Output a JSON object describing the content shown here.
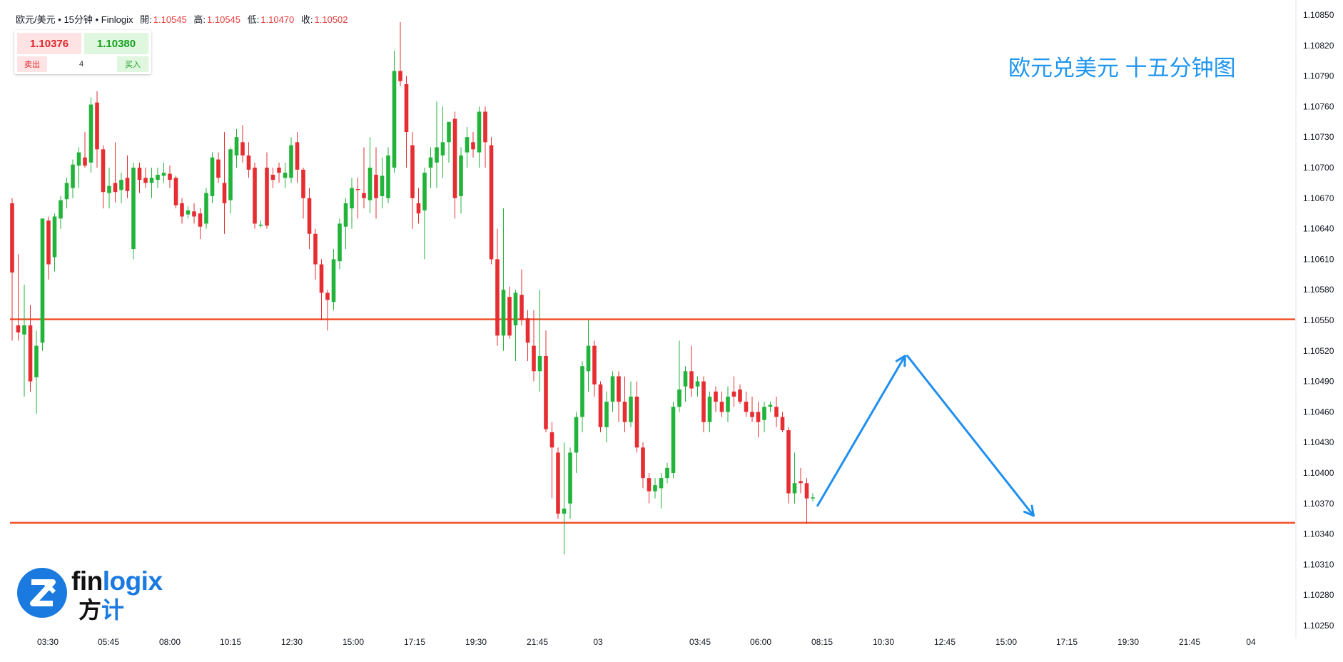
{
  "header": {
    "symbol": "欧元/美元",
    "sep1": "•",
    "interval": "15分钟",
    "sep2": "•",
    "source": "Finlogix",
    "open_label": "開:",
    "open": "1.10545",
    "high_label": "高:",
    "high": "1.10545",
    "low_label": "低:",
    "low": "1.10470",
    "close_label": "收:",
    "close": "1.10502"
  },
  "trade_panel": {
    "sell_price": "1.10376",
    "buy_price": "1.10380",
    "sell_label": "卖出",
    "buy_label": "买入",
    "quantity": "4"
  },
  "annotation": "欧元兑美元 十五分钟图",
  "logo": {
    "en_dark": "fin",
    "en_blue": "logix",
    "cn_dark": "方",
    "cn_blue": "计"
  },
  "colors": {
    "up": "#22b33a",
    "down": "#e62e32",
    "level": "#f0502a",
    "arrow": "#1f8ff0",
    "grid": "#e9ecf0"
  },
  "chart_data": {
    "type": "candlestick",
    "title": "欧元兑美元 十五分钟图",
    "y_ticks": [
      "1.10850",
      "1.10820",
      "1.10790",
      "1.10760",
      "1.10730",
      "1.10700",
      "1.10670",
      "1.10640",
      "1.10610",
      "1.10580",
      "1.10550",
      "1.10520",
      "1.10490",
      "1.10460",
      "1.10430",
      "1.10400",
      "1.10370",
      "1.10340",
      "1.10310",
      "1.10280",
      "1.10250"
    ],
    "x_ticks": [
      "03:30",
      "05:45",
      "08:00",
      "10:15",
      "12:30",
      "15:00",
      "17:15",
      "19:30",
      "21:45",
      "03",
      "03:45",
      "06:00",
      "08:15",
      "10:30",
      "12:45",
      "15:00",
      "17:15",
      "19:30",
      "21:45",
      "04"
    ],
    "ylim": [
      1.10242,
      1.10866
    ],
    "levels": [
      1.10551,
      1.10351
    ],
    "candles": [
      {
        "t": 0,
        "o": 1.10665,
        "h": 1.1067,
        "l": 1.1053,
        "c": 1.10597
      },
      {
        "t": 1,
        "o": 1.10545,
        "h": 1.10615,
        "l": 1.1053,
        "c": 1.10538
      },
      {
        "t": 2,
        "o": 1.10536,
        "h": 1.10585,
        "l": 1.10475,
        "c": 1.10545
      },
      {
        "t": 3,
        "o": 1.10545,
        "h": 1.10565,
        "l": 1.1048,
        "c": 1.1049
      },
      {
        "t": 4,
        "o": 1.10494,
        "h": 1.1054,
        "l": 1.10458,
        "c": 1.10525
      },
      {
        "t": 5,
        "o": 1.10528,
        "h": 1.1065,
        "l": 1.1052,
        "c": 1.1065
      },
      {
        "t": 6,
        "o": 1.10648,
        "h": 1.10652,
        "l": 1.1059,
        "c": 1.10605
      },
      {
        "t": 7,
        "o": 1.10612,
        "h": 1.10655,
        "l": 1.10598,
        "c": 1.10652
      },
      {
        "t": 8,
        "o": 1.1065,
        "h": 1.10672,
        "l": 1.1064,
        "c": 1.10668
      },
      {
        "t": 9,
        "o": 1.10669,
        "h": 1.1069,
        "l": 1.1066,
        "c": 1.10685
      },
      {
        "t": 10,
        "o": 1.1068,
        "h": 1.10708,
        "l": 1.1067,
        "c": 1.10703
      },
      {
        "t": 11,
        "o": 1.10702,
        "h": 1.1072,
        "l": 1.1068,
        "c": 1.10715
      },
      {
        "t": 12,
        "o": 1.1071,
        "h": 1.10735,
        "l": 1.107,
        "c": 1.10702
      },
      {
        "t": 13,
        "o": 1.10705,
        "h": 1.10769,
        "l": 1.10695,
        "c": 1.10762
      },
      {
        "t": 14,
        "o": 1.10764,
        "h": 1.10775,
        "l": 1.107,
        "c": 1.10718
      },
      {
        "t": 15,
        "o": 1.10718,
        "h": 1.10722,
        "l": 1.1066,
        "c": 1.10676
      },
      {
        "t": 16,
        "o": 1.10675,
        "h": 1.107,
        "l": 1.1066,
        "c": 1.10682
      },
      {
        "t": 17,
        "o": 1.10685,
        "h": 1.10725,
        "l": 1.10666,
        "c": 1.10676
      },
      {
        "t": 18,
        "o": 1.10678,
        "h": 1.10695,
        "l": 1.10665,
        "c": 1.10688
      },
      {
        "t": 19,
        "o": 1.1069,
        "h": 1.10712,
        "l": 1.1067,
        "c": 1.10677
      },
      {
        "t": 20,
        "o": 1.1062,
        "h": 1.10705,
        "l": 1.1061,
        "c": 1.107
      },
      {
        "t": 21,
        "o": 1.107,
        "h": 1.10705,
        "l": 1.10675,
        "c": 1.10688
      },
      {
        "t": 22,
        "o": 1.1069,
        "h": 1.107,
        "l": 1.1068,
        "c": 1.10685
      },
      {
        "t": 23,
        "o": 1.10685,
        "h": 1.107,
        "l": 1.1067,
        "c": 1.1069
      },
      {
        "t": 24,
        "o": 1.10688,
        "h": 1.107,
        "l": 1.1068,
        "c": 1.10693
      },
      {
        "t": 25,
        "o": 1.10692,
        "h": 1.10705,
        "l": 1.10685,
        "c": 1.10695
      },
      {
        "t": 26,
        "o": 1.10694,
        "h": 1.10702,
        "l": 1.1068,
        "c": 1.10688
      },
      {
        "t": 27,
        "o": 1.1069,
        "h": 1.10692,
        "l": 1.1066,
        "c": 1.10663
      },
      {
        "t": 28,
        "o": 1.10665,
        "h": 1.1067,
        "l": 1.10645,
        "c": 1.10652
      },
      {
        "t": 29,
        "o": 1.10654,
        "h": 1.10662,
        "l": 1.1065,
        "c": 1.10658
      },
      {
        "t": 30,
        "o": 1.10657,
        "h": 1.10665,
        "l": 1.10645,
        "c": 1.10652
      },
      {
        "t": 31,
        "o": 1.10655,
        "h": 1.1066,
        "l": 1.1063,
        "c": 1.10642
      },
      {
        "t": 32,
        "o": 1.10645,
        "h": 1.1068,
        "l": 1.1064,
        "c": 1.10675
      },
      {
        "t": 33,
        "o": 1.10672,
        "h": 1.10715,
        "l": 1.10665,
        "c": 1.1071
      },
      {
        "t": 34,
        "o": 1.10708,
        "h": 1.10715,
        "l": 1.10685,
        "c": 1.1069
      },
      {
        "t": 35,
        "o": 1.10685,
        "h": 1.10735,
        "l": 1.10635,
        "c": 1.10665
      },
      {
        "t": 36,
        "o": 1.10668,
        "h": 1.1072,
        "l": 1.10655,
        "c": 1.10718
      },
      {
        "t": 37,
        "o": 1.10712,
        "h": 1.10738,
        "l": 1.107,
        "c": 1.1073
      },
      {
        "t": 38,
        "o": 1.10725,
        "h": 1.10742,
        "l": 1.10705,
        "c": 1.10712
      },
      {
        "t": 39,
        "o": 1.10712,
        "h": 1.10725,
        "l": 1.1069,
        "c": 1.10698
      },
      {
        "t": 40,
        "o": 1.107,
        "h": 1.10705,
        "l": 1.1064,
        "c": 1.10645
      },
      {
        "t": 41,
        "o": 1.10643,
        "h": 1.10648,
        "l": 1.10641,
        "c": 1.10644
      },
      {
        "t": 42,
        "o": 1.107,
        "h": 1.10715,
        "l": 1.1064,
        "c": 1.10643
      },
      {
        "t": 43,
        "o": 1.10693,
        "h": 1.107,
        "l": 1.1068,
        "c": 1.10688
      },
      {
        "t": 44,
        "o": 1.107,
        "h": 1.10705,
        "l": 1.10685,
        "c": 1.10695
      },
      {
        "t": 45,
        "o": 1.1069,
        "h": 1.10705,
        "l": 1.1068,
        "c": 1.10695
      },
      {
        "t": 46,
        "o": 1.1069,
        "h": 1.1073,
        "l": 1.10685,
        "c": 1.10722
      },
      {
        "t": 47,
        "o": 1.10725,
        "h": 1.10735,
        "l": 1.10685,
        "c": 1.10698
      },
      {
        "t": 48,
        "o": 1.10698,
        "h": 1.107,
        "l": 1.1065,
        "c": 1.1067
      },
      {
        "t": 49,
        "o": 1.1067,
        "h": 1.1068,
        "l": 1.1062,
        "c": 1.10635
      },
      {
        "t": 50,
        "o": 1.10635,
        "h": 1.1064,
        "l": 1.1059,
        "c": 1.10605
      },
      {
        "t": 51,
        "o": 1.10605,
        "h": 1.1061,
        "l": 1.1055,
        "c": 1.10577
      },
      {
        "t": 52,
        "o": 1.10577,
        "h": 1.1058,
        "l": 1.1054,
        "c": 1.1057
      },
      {
        "t": 53,
        "o": 1.10568,
        "h": 1.1062,
        "l": 1.1056,
        "c": 1.1061
      },
      {
        "t": 54,
        "o": 1.10608,
        "h": 1.1065,
        "l": 1.106,
        "c": 1.10645
      },
      {
        "t": 55,
        "o": 1.10642,
        "h": 1.1067,
        "l": 1.1062,
        "c": 1.10665
      },
      {
        "t": 56,
        "o": 1.1066,
        "h": 1.1069,
        "l": 1.1064,
        "c": 1.1068
      },
      {
        "t": 57,
        "o": 1.10679,
        "h": 1.1069,
        "l": 1.1065,
        "c": 1.10678
      },
      {
        "t": 58,
        "o": 1.10675,
        "h": 1.1072,
        "l": 1.1066,
        "c": 1.1067
      },
      {
        "t": 59,
        "o": 1.10668,
        "h": 1.1073,
        "l": 1.10655,
        "c": 1.107
      },
      {
        "t": 60,
        "o": 1.10693,
        "h": 1.1072,
        "l": 1.1065,
        "c": 1.1067
      },
      {
        "t": 61,
        "o": 1.10672,
        "h": 1.1071,
        "l": 1.1066,
        "c": 1.10692
      },
      {
        "t": 62,
        "o": 1.1067,
        "h": 1.1072,
        "l": 1.10665,
        "c": 1.10712
      },
      {
        "t": 63,
        "o": 1.107,
        "h": 1.10815,
        "l": 1.10695,
        "c": 1.10795
      },
      {
        "t": 64,
        "o": 1.10795,
        "h": 1.10843,
        "l": 1.1078,
        "c": 1.10785
      },
      {
        "t": 65,
        "o": 1.10782,
        "h": 1.1079,
        "l": 1.107,
        "c": 1.10735
      },
      {
        "t": 66,
        "o": 1.10722,
        "h": 1.10735,
        "l": 1.1064,
        "c": 1.1067
      },
      {
        "t": 67,
        "o": 1.10665,
        "h": 1.1068,
        "l": 1.10645,
        "c": 1.10655
      },
      {
        "t": 68,
        "o": 1.10658,
        "h": 1.107,
        "l": 1.1061,
        "c": 1.10695
      },
      {
        "t": 69,
        "o": 1.107,
        "h": 1.1072,
        "l": 1.1068,
        "c": 1.1071
      },
      {
        "t": 70,
        "o": 1.10705,
        "h": 1.10765,
        "l": 1.1068,
        "c": 1.1072
      },
      {
        "t": 71,
        "o": 1.10712,
        "h": 1.1076,
        "l": 1.1069,
        "c": 1.10725
      },
      {
        "t": 72,
        "o": 1.10725,
        "h": 1.10745,
        "l": 1.10705,
        "c": 1.10745
      },
      {
        "t": 73,
        "o": 1.10748,
        "h": 1.10755,
        "l": 1.1065,
        "c": 1.1067
      },
      {
        "t": 74,
        "o": 1.10672,
        "h": 1.1072,
        "l": 1.10655,
        "c": 1.10712
      },
      {
        "t": 75,
        "o": 1.10715,
        "h": 1.1074,
        "l": 1.107,
        "c": 1.1073
      },
      {
        "t": 76,
        "o": 1.10725,
        "h": 1.10735,
        "l": 1.1071,
        "c": 1.10718
      },
      {
        "t": 77,
        "o": 1.10715,
        "h": 1.1076,
        "l": 1.107,
        "c": 1.10755
      },
      {
        "t": 78,
        "o": 1.10755,
        "h": 1.1076,
        "l": 1.107,
        "c": 1.10725
      },
      {
        "t": 79,
        "o": 1.10722,
        "h": 1.1073,
        "l": 1.10605,
        "c": 1.1061
      },
      {
        "t": 80,
        "o": 1.1061,
        "h": 1.1064,
        "l": 1.10525,
        "c": 1.10535
      },
      {
        "t": 81,
        "o": 1.10535,
        "h": 1.1066,
        "l": 1.1052,
        "c": 1.1058
      },
      {
        "t": 82,
        "o": 1.10573,
        "h": 1.10583,
        "l": 1.10532,
        "c": 1.10535
      },
      {
        "t": 83,
        "o": 1.10545,
        "h": 1.1058,
        "l": 1.1051,
        "c": 1.10577
      },
      {
        "t": 84,
        "o": 1.10575,
        "h": 1.106,
        "l": 1.10545,
        "c": 1.1055
      },
      {
        "t": 85,
        "o": 1.10552,
        "h": 1.1056,
        "l": 1.1051,
        "c": 1.10528
      },
      {
        "t": 86,
        "o": 1.10525,
        "h": 1.1056,
        "l": 1.1049,
        "c": 1.105
      },
      {
        "t": 87,
        "o": 1.105,
        "h": 1.1058,
        "l": 1.1048,
        "c": 1.10515
      },
      {
        "t": 88,
        "o": 1.10515,
        "h": 1.1054,
        "l": 1.1044,
        "c": 1.10443
      },
      {
        "t": 89,
        "o": 1.1044,
        "h": 1.1045,
        "l": 1.10375,
        "c": 1.10425
      },
      {
        "t": 90,
        "o": 1.1042,
        "h": 1.10425,
        "l": 1.10355,
        "c": 1.1036
      },
      {
        "t": 91,
        "o": 1.1036,
        "h": 1.1043,
        "l": 1.1032,
        "c": 1.10365
      },
      {
        "t": 92,
        "o": 1.1037,
        "h": 1.10425,
        "l": 1.10355,
        "c": 1.1042
      },
      {
        "t": 93,
        "o": 1.1042,
        "h": 1.1046,
        "l": 1.104,
        "c": 1.10455
      },
      {
        "t": 94,
        "o": 1.10455,
        "h": 1.1051,
        "l": 1.1044,
        "c": 1.10505
      },
      {
        "t": 95,
        "o": 1.105,
        "h": 1.1055,
        "l": 1.1048,
        "c": 1.10525
      },
      {
        "t": 96,
        "o": 1.10525,
        "h": 1.1053,
        "l": 1.10475,
        "c": 1.10487
      },
      {
        "t": 97,
        "o": 1.10487,
        "h": 1.1049,
        "l": 1.1044,
        "c": 1.10445
      },
      {
        "t": 98,
        "o": 1.10445,
        "h": 1.1048,
        "l": 1.1043,
        "c": 1.1047
      },
      {
        "t": 99,
        "o": 1.1047,
        "h": 1.105,
        "l": 1.1046,
        "c": 1.10495
      },
      {
        "t": 100,
        "o": 1.10495,
        "h": 1.105,
        "l": 1.1045,
        "c": 1.1047
      },
      {
        "t": 101,
        "o": 1.1047,
        "h": 1.10495,
        "l": 1.1044,
        "c": 1.1045
      },
      {
        "t": 102,
        "o": 1.1045,
        "h": 1.1049,
        "l": 1.10445,
        "c": 1.10475
      },
      {
        "t": 103,
        "o": 1.10475,
        "h": 1.1049,
        "l": 1.1042,
        "c": 1.10425
      },
      {
        "t": 104,
        "o": 1.10425,
        "h": 1.1043,
        "l": 1.10385,
        "c": 1.10395
      },
      {
        "t": 105,
        "o": 1.10395,
        "h": 1.104,
        "l": 1.1037,
        "c": 1.10382
      },
      {
        "t": 106,
        "o": 1.10382,
        "h": 1.10395,
        "l": 1.10375,
        "c": 1.10388
      },
      {
        "t": 107,
        "o": 1.10385,
        "h": 1.104,
        "l": 1.10365,
        "c": 1.10395
      },
      {
        "t": 108,
        "o": 1.10395,
        "h": 1.1041,
        "l": 1.1039,
        "c": 1.10405
      },
      {
        "t": 109,
        "o": 1.104,
        "h": 1.1047,
        "l": 1.10395,
        "c": 1.10465
      },
      {
        "t": 110,
        "o": 1.10465,
        "h": 1.1053,
        "l": 1.1046,
        "c": 1.10482
      },
      {
        "t": 111,
        "o": 1.10485,
        "h": 1.10505,
        "l": 1.1047,
        "c": 1.105
      },
      {
        "t": 112,
        "o": 1.105,
        "h": 1.10525,
        "l": 1.10475,
        "c": 1.10483
      },
      {
        "t": 113,
        "o": 1.10485,
        "h": 1.10495,
        "l": 1.10475,
        "c": 1.1049
      },
      {
        "t": 114,
        "o": 1.1049,
        "h": 1.10495,
        "l": 1.1044,
        "c": 1.1045
      },
      {
        "t": 115,
        "o": 1.1045,
        "h": 1.1048,
        "l": 1.1044,
        "c": 1.10475
      },
      {
        "t": 116,
        "o": 1.1048,
        "h": 1.10485,
        "l": 1.1046,
        "c": 1.1047
      },
      {
        "t": 117,
        "o": 1.1047,
        "h": 1.1048,
        "l": 1.10455,
        "c": 1.1046
      },
      {
        "t": 118,
        "o": 1.1046,
        "h": 1.10485,
        "l": 1.1045,
        "c": 1.10475
      },
      {
        "t": 119,
        "o": 1.1048,
        "h": 1.10495,
        "l": 1.10465,
        "c": 1.10475
      },
      {
        "t": 120,
        "o": 1.10482,
        "h": 1.10487,
        "l": 1.10468,
        "c": 1.1047
      },
      {
        "t": 121,
        "o": 1.1047,
        "h": 1.1048,
        "l": 1.10455,
        "c": 1.1046
      },
      {
        "t": 122,
        "o": 1.1046,
        "h": 1.10475,
        "l": 1.1045,
        "c": 1.10455
      },
      {
        "t": 123,
        "o": 1.1046,
        "h": 1.1047,
        "l": 1.10435,
        "c": 1.1045
      },
      {
        "t": 124,
        "o": 1.10452,
        "h": 1.1047,
        "l": 1.1044,
        "c": 1.10465
      },
      {
        "t": 125,
        "o": 1.10465,
        "h": 1.1047,
        "l": 1.1046,
        "c": 1.10467
      },
      {
        "t": 126,
        "o": 1.10465,
        "h": 1.10475,
        "l": 1.10445,
        "c": 1.10455
      },
      {
        "t": 127,
        "o": 1.10455,
        "h": 1.1046,
        "l": 1.1044,
        "c": 1.10442
      },
      {
        "t": 128,
        "o": 1.10442,
        "h": 1.10445,
        "l": 1.1037,
        "c": 1.1038
      },
      {
        "t": 129,
        "o": 1.1038,
        "h": 1.1042,
        "l": 1.1037,
        "c": 1.1039
      },
      {
        "t": 130,
        "o": 1.10392,
        "h": 1.10405,
        "l": 1.1038,
        "c": 1.1039
      },
      {
        "t": 131,
        "o": 1.1039,
        "h": 1.10395,
        "l": 1.1035,
        "c": 1.10375
      },
      {
        "t": 132,
        "o": 1.10375,
        "h": 1.1038,
        "l": 1.10372,
        "c": 1.10376
      }
    ],
    "arrows": [
      {
        "t1": 132.8,
        "p1": 1.10368,
        "t2": 147.2,
        "p2": 1.10515
      },
      {
        "t1": 147.6,
        "p1": 1.10515,
        "t2": 168.4,
        "p2": 1.10358
      }
    ]
  }
}
